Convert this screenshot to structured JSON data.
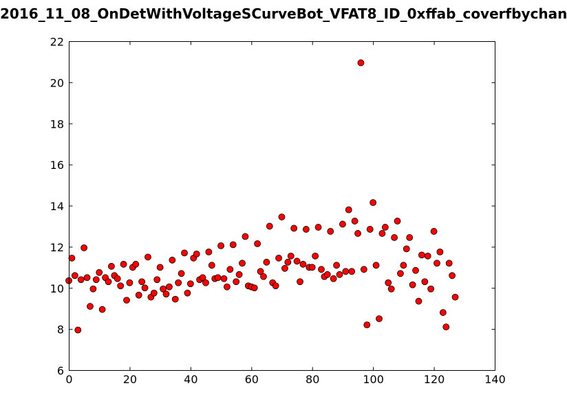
{
  "chart_data": {
    "type": "scatter",
    "title": "2016_11_08_OnDetWithVoltageSCurveBot_VFAT8_ID_0xffab_coverfbychan",
    "xlabel": "",
    "ylabel": "",
    "xlim": [
      0,
      140
    ],
    "ylim": [
      6,
      22
    ],
    "x_ticks": [
      0,
      20,
      40,
      60,
      80,
      100,
      120,
      140
    ],
    "y_ticks": [
      6,
      8,
      10,
      12,
      14,
      16,
      18,
      20,
      22
    ],
    "grid": false,
    "marker_color": "#ff0000",
    "marker_edge_color": "#000000",
    "points": [
      [
        0,
        10.35
      ],
      [
        1,
        11.45
      ],
      [
        2,
        10.6
      ],
      [
        3,
        7.95
      ],
      [
        4,
        10.4
      ],
      [
        5,
        11.95
      ],
      [
        6,
        10.5
      ],
      [
        7,
        9.1
      ],
      [
        8,
        9.95
      ],
      [
        9,
        10.4
      ],
      [
        10,
        10.75
      ],
      [
        11,
        8.95
      ],
      [
        12,
        10.5
      ],
      [
        13,
        10.3
      ],
      [
        14,
        11.05
      ],
      [
        15,
        10.6
      ],
      [
        16,
        10.45
      ],
      [
        17,
        10.1
      ],
      [
        18,
        11.15
      ],
      [
        19,
        9.4
      ],
      [
        20,
        10.25
      ],
      [
        21,
        11.0
      ],
      [
        22,
        11.15
      ],
      [
        23,
        9.65
      ],
      [
        24,
        10.3
      ],
      [
        25,
        10.0
      ],
      [
        26,
        11.5
      ],
      [
        27,
        9.55
      ],
      [
        28,
        9.75
      ],
      [
        29,
        10.4
      ],
      [
        30,
        11.0
      ],
      [
        31,
        9.95
      ],
      [
        32,
        9.7
      ],
      [
        33,
        10.05
      ],
      [
        34,
        11.35
      ],
      [
        35,
        9.45
      ],
      [
        36,
        10.25
      ],
      [
        37,
        10.7
      ],
      [
        38,
        11.7
      ],
      [
        39,
        9.75
      ],
      [
        40,
        10.2
      ],
      [
        41,
        11.45
      ],
      [
        42,
        11.65
      ],
      [
        43,
        10.4
      ],
      [
        44,
        10.5
      ],
      [
        45,
        10.25
      ],
      [
        46,
        11.75
      ],
      [
        47,
        11.1
      ],
      [
        48,
        10.45
      ],
      [
        49,
        10.5
      ],
      [
        50,
        12.05
      ],
      [
        51,
        10.45
      ],
      [
        52,
        10.05
      ],
      [
        53,
        10.9
      ],
      [
        54,
        12.1
      ],
      [
        55,
        10.3
      ],
      [
        56,
        10.65
      ],
      [
        57,
        11.2
      ],
      [
        58,
        12.5
      ],
      [
        59,
        10.1
      ],
      [
        60,
        10.05
      ],
      [
        61,
        10.0
      ],
      [
        62,
        12.15
      ],
      [
        63,
        10.8
      ],
      [
        64,
        10.55
      ],
      [
        65,
        11.25
      ],
      [
        66,
        13.0
      ],
      [
        67,
        10.25
      ],
      [
        68,
        10.1
      ],
      [
        69,
        11.45
      ],
      [
        70,
        13.45
      ],
      [
        71,
        10.95
      ],
      [
        72,
        11.25
      ],
      [
        73,
        11.55
      ],
      [
        74,
        12.9
      ],
      [
        75,
        11.3
      ],
      [
        76,
        10.3
      ],
      [
        77,
        11.15
      ],
      [
        78,
        12.85
      ],
      [
        79,
        11.0
      ],
      [
        80,
        11.0
      ],
      [
        81,
        11.55
      ],
      [
        82,
        12.95
      ],
      [
        83,
        10.9
      ],
      [
        84,
        10.55
      ],
      [
        85,
        10.65
      ],
      [
        86,
        12.75
      ],
      [
        87,
        10.45
      ],
      [
        88,
        11.1
      ],
      [
        89,
        10.65
      ],
      [
        90,
        13.1
      ],
      [
        91,
        10.8
      ],
      [
        92,
        13.8
      ],
      [
        93,
        10.8
      ],
      [
        94,
        13.25
      ],
      [
        95,
        12.65
      ],
      [
        96,
        20.95
      ],
      [
        97,
        10.9
      ],
      [
        98,
        8.2
      ],
      [
        99,
        12.85
      ],
      [
        100,
        14.15
      ],
      [
        101,
        11.1
      ],
      [
        102,
        8.5
      ],
      [
        103,
        12.65
      ],
      [
        104,
        12.95
      ],
      [
        105,
        10.25
      ],
      [
        106,
        9.95
      ],
      [
        107,
        12.45
      ],
      [
        108,
        13.25
      ],
      [
        109,
        10.7
      ],
      [
        110,
        11.1
      ],
      [
        111,
        11.9
      ],
      [
        112,
        12.45
      ],
      [
        113,
        10.15
      ],
      [
        114,
        10.85
      ],
      [
        115,
        9.35
      ],
      [
        116,
        11.6
      ],
      [
        117,
        10.3
      ],
      [
        118,
        11.55
      ],
      [
        119,
        9.95
      ],
      [
        120,
        12.75
      ],
      [
        121,
        11.2
      ],
      [
        122,
        11.75
      ],
      [
        123,
        8.8
      ],
      [
        124,
        8.1
      ],
      [
        125,
        11.2
      ],
      [
        126,
        10.6
      ],
      [
        127,
        9.55
      ]
    ]
  }
}
